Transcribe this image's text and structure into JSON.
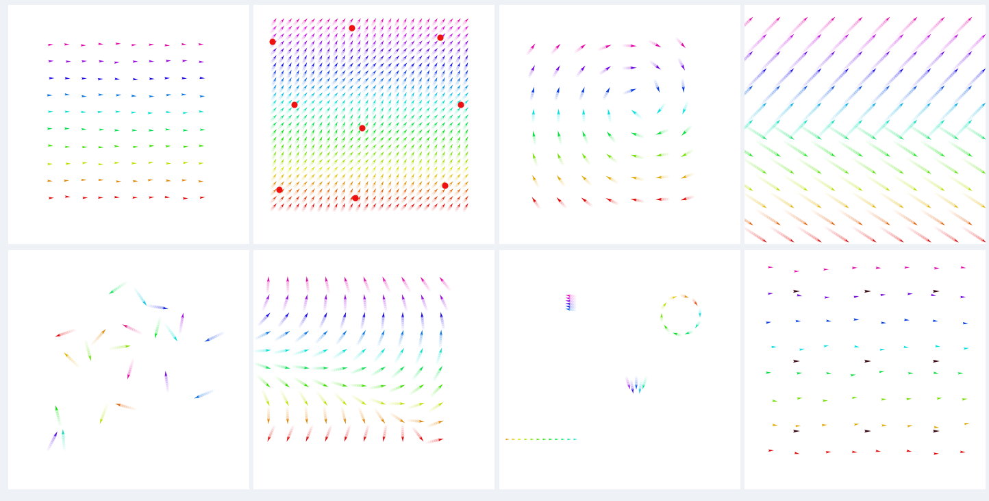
{
  "panels": [
    {
      "id": "p1",
      "kind": "uniform-grid",
      "trail": "none",
      "hue_by": "row",
      "markers": []
    },
    {
      "id": "p2",
      "kind": "dense-grid-with-sources",
      "trail": "long",
      "hue_by": "row",
      "markers": [
        "red-dot"
      ]
    },
    {
      "id": "p3",
      "kind": "vortex-grid",
      "trail": "medium",
      "hue_by": "row",
      "markers": []
    },
    {
      "id": "p4",
      "kind": "shear-streaks",
      "trail": "long",
      "hue_by": "row",
      "markers": []
    },
    {
      "id": "p5",
      "kind": "scattered-particles",
      "trail": "long",
      "hue_by": "index",
      "markers": []
    },
    {
      "id": "p6",
      "kind": "swirl-grid",
      "trail": "long",
      "hue_by": "row",
      "markers": []
    },
    {
      "id": "p7",
      "kind": "clusters",
      "trail": "short",
      "hue_by": "group",
      "markers": []
    },
    {
      "id": "p8",
      "kind": "grid-with-attractors",
      "trail": "none",
      "hue_by": "row",
      "markers": [
        "dark-arrow"
      ]
    }
  ],
  "colors": {
    "background": "#eef2f6",
    "panel": "#ffffff",
    "marker_dot": "#ee1111",
    "marker_dark": "#3a0a14"
  }
}
